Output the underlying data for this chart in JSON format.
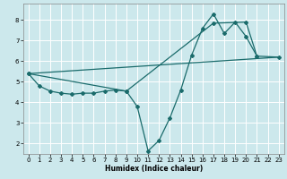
{
  "title": "",
  "xlabel": "Humidex (Indice chaleur)",
  "ylabel": "",
  "background_color": "#cce8ec",
  "grid_color": "#ffffff",
  "line_color": "#1a6b6b",
  "marker": "D",
  "markersize": 2.0,
  "linewidth": 0.9,
  "xlim": [
    -0.5,
    23.5
  ],
  "ylim": [
    1.5,
    8.8
  ],
  "xticks": [
    0,
    1,
    2,
    3,
    4,
    5,
    6,
    7,
    8,
    9,
    10,
    11,
    12,
    13,
    14,
    15,
    16,
    17,
    18,
    19,
    20,
    21,
    22,
    23
  ],
  "yticks": [
    2,
    3,
    4,
    5,
    6,
    7,
    8
  ],
  "line1_x": [
    0,
    1,
    2,
    3,
    4,
    5,
    6,
    7,
    8,
    9,
    10,
    11,
    12,
    13,
    14,
    15,
    16,
    17,
    18,
    19,
    20,
    21
  ],
  "line1_y": [
    5.4,
    4.8,
    4.55,
    4.45,
    4.4,
    4.45,
    4.45,
    4.55,
    4.6,
    4.55,
    3.8,
    1.65,
    2.15,
    3.25,
    4.6,
    6.3,
    7.6,
    8.3,
    7.35,
    7.9,
    7.2,
    6.25
  ],
  "line2_x": [
    0,
    23
  ],
  "line2_y": [
    5.4,
    6.2
  ],
  "line3_x": [
    0,
    9,
    17,
    20,
    21,
    23
  ],
  "line3_y": [
    5.4,
    4.55,
    7.85,
    7.9,
    6.25,
    6.2
  ],
  "xlabel_fontsize": 5.5,
  "xlabel_fontweight": "bold",
  "tick_labelsize": 5.0,
  "figsize": [
    3.2,
    2.0
  ],
  "dpi": 100
}
